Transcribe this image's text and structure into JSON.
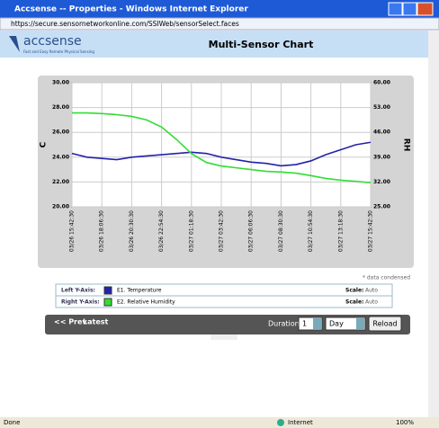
{
  "window": {
    "title": "Accsense -- Properties - Windows Internet Explorer",
    "address": "https://secure.sensornetworkonline.com/SSIWeb/sensorSelect.faces"
  },
  "header": {
    "logo": "accsense",
    "tagline": "Fast and Easy Remote Physical Sensing",
    "title": "Multi-Sensor Chart"
  },
  "chart_data": {
    "type": "line",
    "ylabel": "C",
    "y2label": "RH",
    "categories": [
      "03/26 15:42:30",
      null,
      "03/26 18:06:30",
      null,
      "03/26 20:30:30",
      null,
      "03/26 22:54:30",
      null,
      "03/27 01:18:30",
      null,
      "03/27 03:42:30",
      null,
      "03/27 06:06:30",
      null,
      "03/27 08:30:30",
      null,
      "03/27 10:54:30",
      null,
      "03/27 13:18:30",
      null,
      "03/27 15:42:30"
    ],
    "ylim": [
      20,
      30
    ],
    "yticks": [
      {
        "value": 20,
        "label": "20.00"
      },
      {
        "value": 22,
        "label": "22.00"
      },
      {
        "value": 24,
        "label": "24.00"
      },
      {
        "value": 26,
        "label": "26.00"
      },
      {
        "value": 28,
        "label": "28.00"
      },
      {
        "value": 30,
        "label": "30.00"
      }
    ],
    "y2lim": [
      25,
      60
    ],
    "y2ticks": [
      {
        "value": 25,
        "label": "25.00"
      },
      {
        "value": 32,
        "label": "32.00"
      },
      {
        "value": 39,
        "label": "39.00"
      },
      {
        "value": 46,
        "label": "46.00"
      },
      {
        "value": 53,
        "label": "53.00"
      },
      {
        "value": 60,
        "label": "60.00"
      }
    ],
    "grid": true,
    "series": [
      {
        "name": "E1. Temperature",
        "color": "#2222aa",
        "values": [
          24.3,
          24.0,
          23.9,
          23.8,
          24.0,
          24.1,
          24.2,
          24.3,
          24.4,
          24.3,
          24.0,
          23.8,
          23.6,
          23.5,
          23.3,
          23.4,
          23.7,
          24.2,
          24.6,
          25.0,
          25.2
        ]
      },
      {
        "name": "E2. Relative Humidity",
        "color": "#33dd33",
        "axis": "y2",
        "values": [
          51.5,
          51.5,
          51.3,
          51.0,
          50.5,
          49.5,
          47.5,
          44.0,
          40.0,
          37.5,
          36.5,
          36.0,
          35.5,
          35.0,
          34.8,
          34.5,
          33.8,
          33.0,
          32.5,
          32.2,
          31.8
        ]
      }
    ],
    "note": "* data condensed"
  },
  "legend": {
    "rows": [
      {
        "axis": "Left Y-Axis:",
        "scale": "Scale:",
        "scale_value": "Auto"
      },
      {
        "axis": "Right Y-Axis:",
        "scale": "Scale:",
        "scale_value": "Auto"
      }
    ]
  },
  "controls": {
    "prev": "<< Prev",
    "latest": "Latest",
    "duration": "Duration:",
    "count": "1",
    "unit": "Day",
    "reload": "Reload"
  },
  "status": {
    "left": "Done",
    "zone": "Internet",
    "zoom": "100%"
  }
}
